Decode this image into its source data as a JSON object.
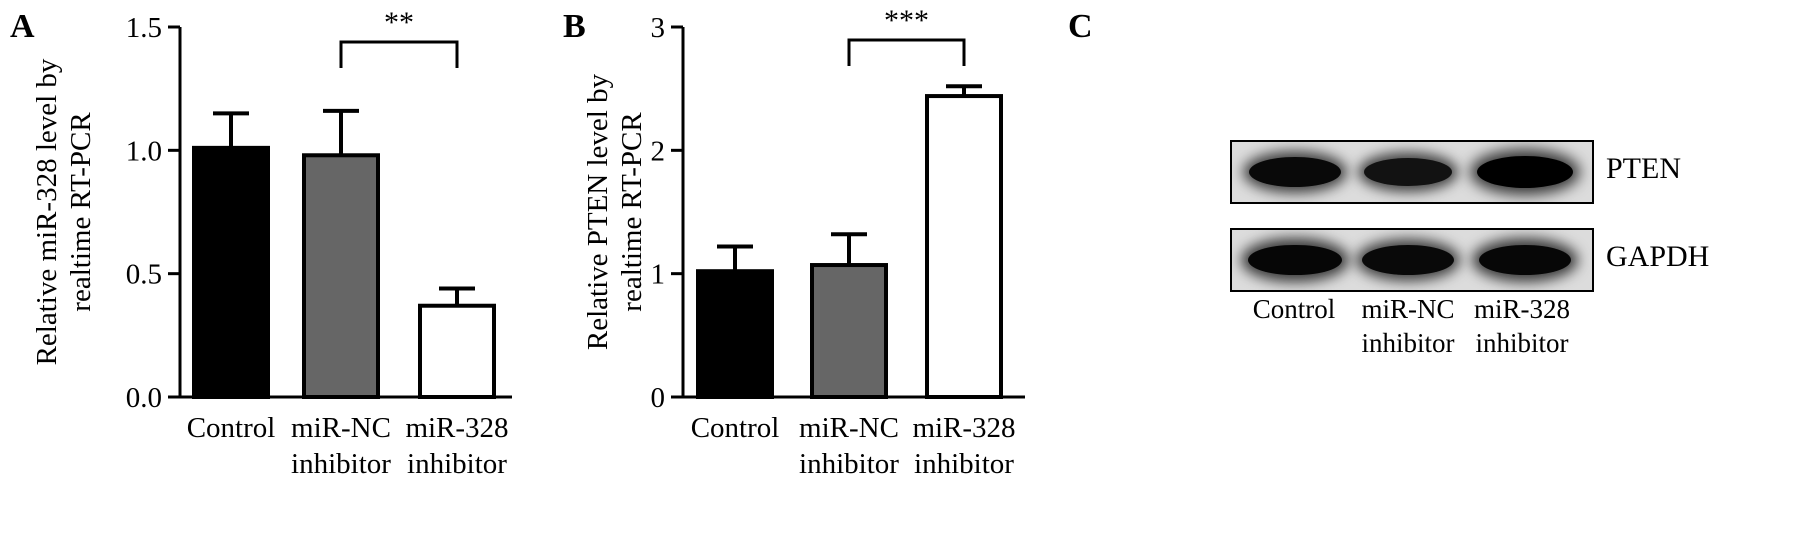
{
  "panels": {
    "a_letter": "A",
    "b_letter": "B",
    "c_letter": "C"
  },
  "colors": {
    "control": "#000000",
    "nc": "#666666",
    "inhibitor": "#ffffff",
    "stroke": "#000000"
  },
  "chart_data": [
    {
      "type": "bar",
      "panel": "A",
      "title": "",
      "xlabel": "",
      "ylabel_lines": [
        "Relative miR-328 level by",
        "realtime RT-PCR"
      ],
      "categories": [
        [
          "Control"
        ],
        [
          "miR-NC",
          "inhibitor"
        ],
        [
          "miR-328",
          "inhibitor"
        ]
      ],
      "values": [
        1.01,
        0.98,
        0.37
      ],
      "errors": [
        0.14,
        0.18,
        0.07
      ],
      "ylim": [
        0,
        1.5
      ],
      "yticks": [
        0.0,
        0.5,
        1.0,
        1.5
      ],
      "ytick_labels": [
        "0.0",
        "0.5",
        "1.0",
        "1.5"
      ],
      "significance": {
        "from": 1,
        "to": 2,
        "label": "**"
      }
    },
    {
      "type": "bar",
      "panel": "B",
      "title": "",
      "xlabel": "",
      "ylabel_lines": [
        "Relative PTEN level by",
        "realtime RT-PCR"
      ],
      "categories": [
        [
          "Control"
        ],
        [
          "miR-NC",
          "inhibitor"
        ],
        [
          "miR-328",
          "inhibitor"
        ]
      ],
      "values": [
        1.02,
        1.07,
        2.44
      ],
      "errors": [
        0.2,
        0.25,
        0.08
      ],
      "ylim": [
        0,
        3
      ],
      "yticks": [
        0,
        1,
        2,
        3
      ],
      "ytick_labels": [
        "0",
        "1",
        "2",
        "3"
      ],
      "significance": {
        "from": 1,
        "to": 2,
        "label": "***"
      }
    }
  ],
  "blot": {
    "rows": [
      {
        "label": "PTEN",
        "band_intensity": [
          0.85,
          0.7,
          1.0
        ]
      },
      {
        "label": "GAPDH",
        "band_intensity": [
          0.9,
          0.85,
          0.88
        ]
      }
    ],
    "lanes": [
      {
        "line1": "Control",
        "line2": ""
      },
      {
        "line1": "miR-NC",
        "line2": "inhibitor"
      },
      {
        "line1": "miR-328",
        "line2": "inhibitor"
      }
    ]
  }
}
